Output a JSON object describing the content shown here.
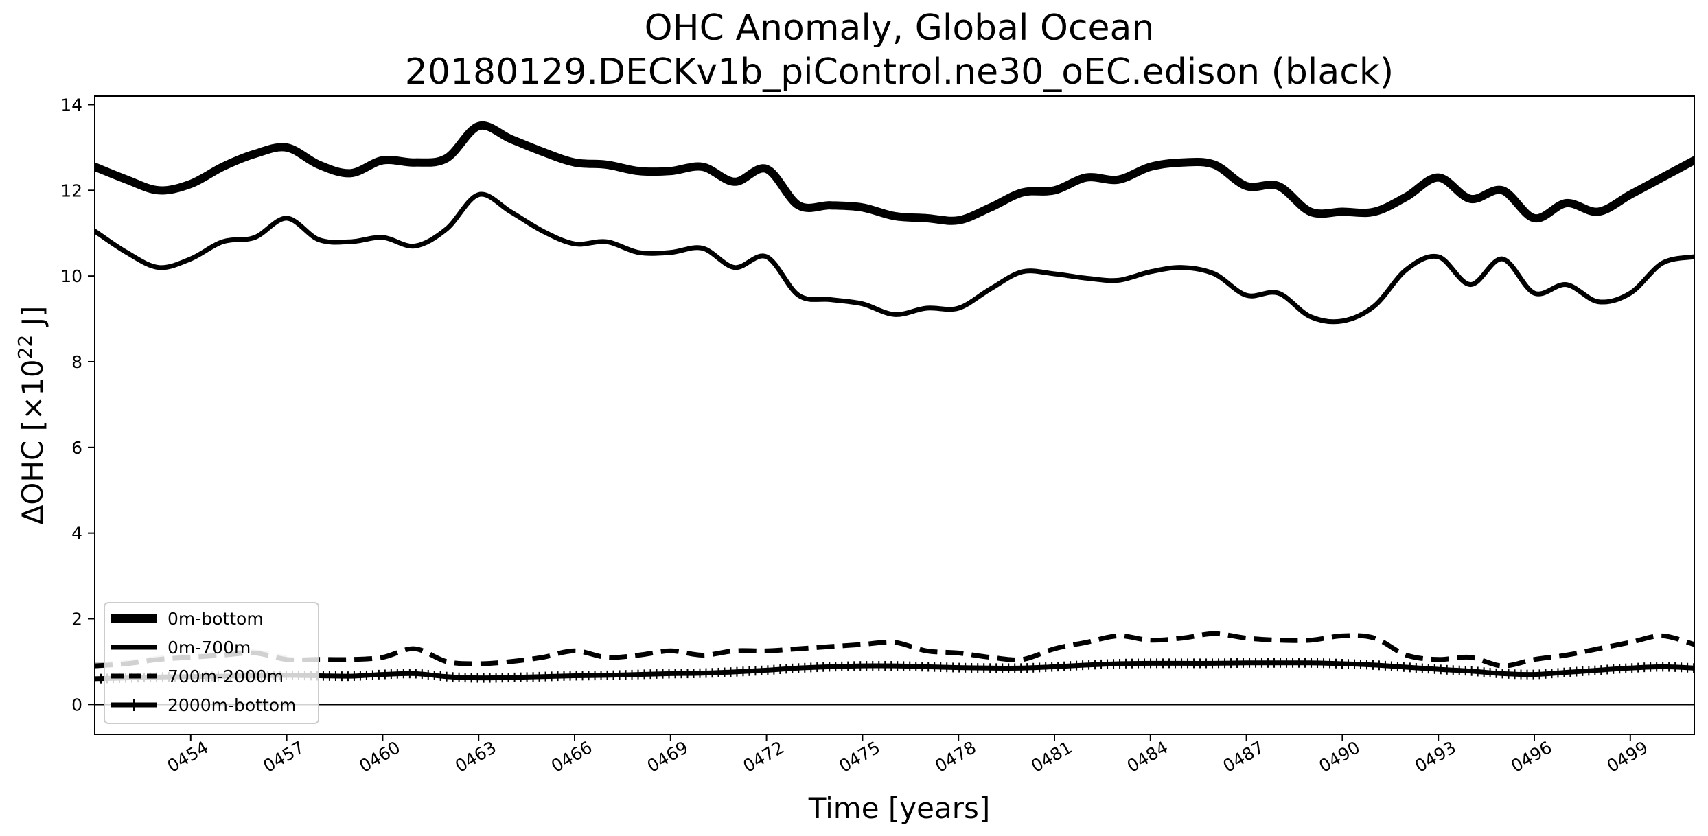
{
  "chart_data": {
    "type": "line",
    "title": [
      "OHC Anomaly, Global Ocean",
      "20180129.DECKv1b_piControl.ne30_oEC.edison (black)"
    ],
    "xlabel": "Time [years]",
    "ylabel_main": "ΔOHC [×10",
    "ylabel_sup": "22",
    "ylabel_end": " J]",
    "xlim": [
      451.0,
      501.0
    ],
    "ylim": [
      -0.7,
      14.2
    ],
    "x_ticks": [
      454,
      457,
      460,
      463,
      466,
      469,
      472,
      475,
      478,
      481,
      484,
      487,
      490,
      493,
      496,
      499
    ],
    "x_tick_labels": [
      "0454",
      "0457",
      "0460",
      "0463",
      "0466",
      "0469",
      "0472",
      "0475",
      "0478",
      "0481",
      "0484",
      "0487",
      "0490",
      "0493",
      "0496",
      "0499"
    ],
    "y_ticks": [
      0,
      2,
      4,
      6,
      8,
      10,
      12,
      14
    ],
    "y_tick_labels": [
      "0",
      "2",
      "4",
      "6",
      "8",
      "10",
      "12",
      "14"
    ],
    "zero_line": 0,
    "grid": false,
    "legend_placement": "lower-left",
    "series": [
      {
        "name": "0m-bottom",
        "style": "solid-thick",
        "color": "#000000",
        "x": [
          451.0,
          452.0,
          453.0,
          454.0,
          455.0,
          456.0,
          457.0,
          458.0,
          459.0,
          460.0,
          461.0,
          462.0,
          463.0,
          464.0,
          465.0,
          466.0,
          467.0,
          468.0,
          469.0,
          470.0,
          471.0,
          472.0,
          473.0,
          474.0,
          475.0,
          476.0,
          477.0,
          478.0,
          479.0,
          480.0,
          481.0,
          482.0,
          483.0,
          484.0,
          485.0,
          486.0,
          487.0,
          488.0,
          489.0,
          490.0,
          491.0,
          492.0,
          493.0,
          494.0,
          495.0,
          496.0,
          497.0,
          498.0,
          499.0,
          500.0,
          501.0
        ],
        "y": [
          12.55,
          12.25,
          12.0,
          12.15,
          12.55,
          12.85,
          13.0,
          12.6,
          12.4,
          12.7,
          12.65,
          12.75,
          13.5,
          13.2,
          12.9,
          12.65,
          12.6,
          12.45,
          12.45,
          12.55,
          12.2,
          12.5,
          11.65,
          11.65,
          11.6,
          11.4,
          11.35,
          11.3,
          11.6,
          11.95,
          12.0,
          12.3,
          12.25,
          12.55,
          12.65,
          12.6,
          12.1,
          12.1,
          11.5,
          11.5,
          11.5,
          11.85,
          12.3,
          11.8,
          12.0,
          11.35,
          11.7,
          11.5,
          11.9,
          12.3,
          12.7
        ]
      },
      {
        "name": "0m-700m",
        "style": "solid",
        "color": "#000000",
        "x": [
          451.0,
          452.0,
          453.0,
          454.0,
          455.0,
          456.0,
          457.0,
          458.0,
          459.0,
          460.0,
          461.0,
          462.0,
          463.0,
          464.0,
          465.0,
          466.0,
          467.0,
          468.0,
          469.0,
          470.0,
          471.0,
          472.0,
          473.0,
          474.0,
          475.0,
          476.0,
          477.0,
          478.0,
          479.0,
          480.0,
          481.0,
          482.0,
          483.0,
          484.0,
          485.0,
          486.0,
          487.0,
          488.0,
          489.0,
          490.0,
          491.0,
          492.0,
          493.0,
          494.0,
          495.0,
          496.0,
          497.0,
          498.0,
          499.0,
          500.0,
          501.0
        ],
        "y": [
          11.05,
          10.55,
          10.2,
          10.4,
          10.8,
          10.9,
          11.35,
          10.85,
          10.8,
          10.9,
          10.7,
          11.1,
          11.9,
          11.5,
          11.05,
          10.75,
          10.8,
          10.55,
          10.55,
          10.65,
          10.2,
          10.45,
          9.55,
          9.45,
          9.35,
          9.1,
          9.25,
          9.25,
          9.7,
          10.1,
          10.05,
          9.95,
          9.9,
          10.1,
          10.2,
          10.05,
          9.55,
          9.6,
          9.05,
          8.95,
          9.3,
          10.15,
          10.45,
          9.8,
          10.4,
          9.6,
          9.8,
          9.4,
          9.6,
          10.3,
          10.45
        ]
      },
      {
        "name": "700m-2000m",
        "style": "dashed",
        "color": "#000000",
        "x": [
          451.0,
          452.0,
          453.0,
          454.0,
          455.0,
          456.0,
          457.0,
          458.0,
          459.0,
          460.0,
          461.0,
          462.0,
          463.0,
          464.0,
          465.0,
          466.0,
          467.0,
          468.0,
          469.0,
          470.0,
          471.0,
          472.0,
          473.0,
          474.0,
          475.0,
          476.0,
          477.0,
          478.0,
          479.0,
          480.0,
          481.0,
          482.0,
          483.0,
          484.0,
          485.0,
          486.0,
          487.0,
          488.0,
          489.0,
          490.0,
          491.0,
          492.0,
          493.0,
          494.0,
          495.0,
          496.0,
          497.0,
          498.0,
          499.0,
          500.0,
          501.0
        ],
        "y": [
          0.9,
          0.95,
          1.05,
          1.1,
          1.15,
          1.2,
          1.05,
          1.05,
          1.05,
          1.1,
          1.3,
          1.0,
          0.95,
          1.0,
          1.1,
          1.25,
          1.1,
          1.15,
          1.25,
          1.15,
          1.25,
          1.25,
          1.3,
          1.35,
          1.4,
          1.45,
          1.25,
          1.2,
          1.1,
          1.05,
          1.3,
          1.45,
          1.6,
          1.5,
          1.55,
          1.65,
          1.55,
          1.5,
          1.5,
          1.6,
          1.55,
          1.15,
          1.05,
          1.1,
          0.9,
          1.05,
          1.15,
          1.3,
          1.45,
          1.6,
          1.4
        ]
      },
      {
        "name": "2000m-bottom",
        "style": "plus-markers",
        "color": "#000000",
        "x": [
          451.0,
          452.0,
          453.0,
          454.0,
          455.0,
          456.0,
          457.0,
          458.0,
          459.0,
          460.0,
          461.0,
          462.0,
          463.0,
          464.0,
          465.0,
          466.0,
          467.0,
          468.0,
          469.0,
          470.0,
          471.0,
          472.0,
          473.0,
          474.0,
          475.0,
          476.0,
          477.0,
          478.0,
          479.0,
          480.0,
          481.0,
          482.0,
          483.0,
          484.0,
          485.0,
          486.0,
          487.0,
          488.0,
          489.0,
          490.0,
          491.0,
          492.0,
          493.0,
          494.0,
          495.0,
          496.0,
          497.0,
          498.0,
          499.0,
          500.0,
          501.0
        ],
        "y": [
          0.6,
          0.62,
          0.64,
          0.65,
          0.66,
          0.67,
          0.68,
          0.67,
          0.66,
          0.7,
          0.72,
          0.65,
          0.62,
          0.63,
          0.65,
          0.67,
          0.68,
          0.7,
          0.72,
          0.73,
          0.76,
          0.8,
          0.85,
          0.88,
          0.9,
          0.9,
          0.88,
          0.86,
          0.85,
          0.85,
          0.88,
          0.92,
          0.95,
          0.96,
          0.96,
          0.96,
          0.97,
          0.97,
          0.97,
          0.95,
          0.92,
          0.87,
          0.82,
          0.78,
          0.72,
          0.7,
          0.75,
          0.8,
          0.85,
          0.88,
          0.85
        ]
      }
    ],
    "legend_entries": [
      "0m-bottom",
      "0m-700m",
      "700m-2000m",
      "2000m-bottom"
    ]
  }
}
